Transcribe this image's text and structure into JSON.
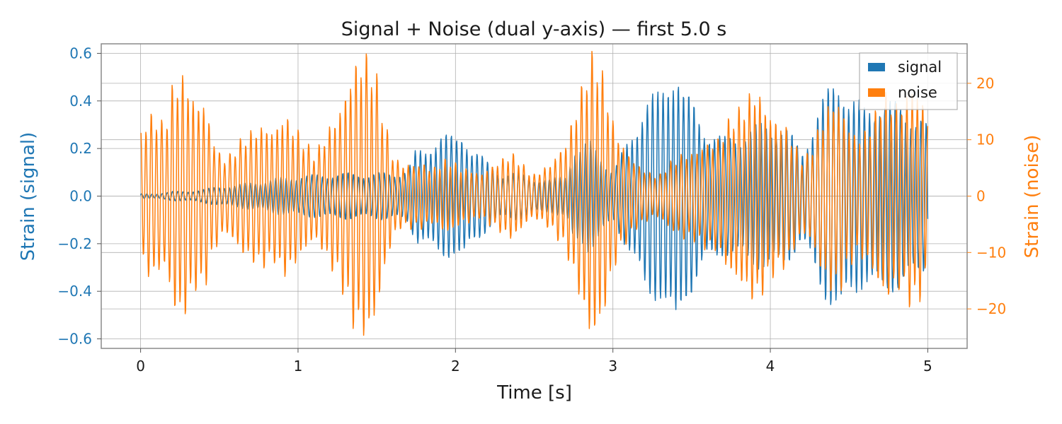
{
  "chart_data": {
    "type": "line",
    "title": "Signal + Noise (dual y-axis) — first 5.0 s",
    "xlabel": "Time [s]",
    "ylabel_left": "Strain (signal)",
    "ylabel_right": "Strain (noise)",
    "xlim": [
      -0.25,
      5.25
    ],
    "ylim_left": [
      -0.64,
      0.64
    ],
    "ylim_right": [
      -27,
      27
    ],
    "x_ticks": [
      0,
      1,
      2,
      3,
      4,
      5
    ],
    "x_tick_labels": [
      "0",
      "1",
      "2",
      "3",
      "4",
      "5"
    ],
    "y_left_ticks": [
      -0.6,
      -0.4,
      -0.2,
      0.0,
      0.2,
      0.4,
      0.6
    ],
    "y_left_tick_labels": [
      "−0.6",
      "−0.4",
      "−0.2",
      "0.0",
      "0.2",
      "0.4",
      "0.6"
    ],
    "y_right_ticks": [
      -20,
      -10,
      0,
      10,
      20
    ],
    "y_right_tick_labels": [
      "−20",
      "−10",
      "0",
      "10",
      "20"
    ],
    "grid": true,
    "legend_position": "top-right",
    "series": [
      {
        "name": "signal",
        "axis": "left",
        "color": "#1f77b4",
        "x": [
          0.0,
          0.1,
          0.2,
          0.3,
          0.4,
          0.5,
          0.6,
          0.7,
          0.8,
          0.9,
          1.0,
          1.1,
          1.2,
          1.3,
          1.4,
          1.5,
          1.6,
          1.7,
          1.75,
          1.8,
          1.85,
          1.9,
          2.0,
          2.05,
          2.1,
          2.2,
          2.3,
          2.4,
          2.5,
          2.6,
          2.7,
          2.75,
          2.8,
          2.85,
          2.9,
          3.0,
          3.1,
          3.2,
          3.3,
          3.35,
          3.4,
          3.45,
          3.5,
          3.6,
          3.7,
          3.8,
          3.9,
          4.0,
          4.1,
          4.2,
          4.3,
          4.4,
          4.45,
          4.5,
          4.6,
          4.7,
          4.8,
          4.9,
          4.95,
          5.0
        ],
        "amplitude": [
          0.01,
          0.01,
          0.02,
          0.02,
          0.03,
          0.04,
          0.05,
          0.06,
          0.07,
          0.08,
          0.09,
          0.09,
          0.1,
          0.1,
          0.1,
          0.1,
          0.1,
          0.12,
          0.2,
          0.2,
          0.25,
          0.28,
          0.25,
          0.3,
          0.22,
          0.15,
          0.1,
          0.1,
          0.08,
          0.07,
          0.1,
          0.22,
          0.2,
          0.25,
          0.22,
          0.1,
          0.25,
          0.42,
          0.45,
          0.55,
          0.62,
          0.45,
          0.42,
          0.3,
          0.25,
          0.28,
          0.3,
          0.33,
          0.3,
          0.2,
          0.38,
          0.5,
          0.55,
          0.45,
          0.38,
          0.45,
          0.4,
          0.38,
          0.37,
          0.3
        ]
      },
      {
        "name": "noise",
        "axis": "right",
        "color": "#ff7f0e",
        "x": [
          0.0,
          0.05,
          0.1,
          0.15,
          0.2,
          0.25,
          0.3,
          0.35,
          0.4,
          0.45,
          0.5,
          0.55,
          0.6,
          0.65,
          0.7,
          0.75,
          0.8,
          0.85,
          0.9,
          0.95,
          1.0,
          1.05,
          1.1,
          1.15,
          1.2,
          1.25,
          1.3,
          1.35,
          1.4,
          1.45,
          1.5,
          1.55,
          1.6,
          1.65,
          1.7,
          1.75,
          1.8,
          1.85,
          1.9,
          1.95,
          2.0,
          2.05,
          2.1,
          2.15,
          2.2,
          2.25,
          2.3,
          2.35,
          2.4,
          2.45,
          2.5,
          2.55,
          2.6,
          2.65,
          2.7,
          2.75,
          2.8,
          2.85,
          2.9,
          2.95,
          3.0,
          3.05,
          3.1,
          3.15,
          3.2,
          3.25,
          3.3,
          3.35,
          3.4,
          3.45,
          3.5,
          3.55,
          3.6,
          3.65,
          3.7,
          3.75,
          3.8,
          3.85,
          3.9,
          3.95,
          4.0,
          4.05,
          4.1,
          4.15,
          4.2,
          4.25,
          4.3,
          4.35,
          4.4,
          4.45,
          4.5,
          4.55,
          4.6,
          4.65,
          4.7,
          4.75,
          4.8,
          4.85,
          4.9,
          4.95,
          5.0
        ],
        "amplitude": [
          12,
          15,
          15,
          13,
          20,
          23,
          21,
          17,
          18,
          12,
          8,
          7,
          9,
          11,
          12,
          13,
          13,
          12,
          15,
          14,
          12,
          10,
          8,
          10,
          13,
          15,
          19,
          24,
          26,
          26,
          22,
          14,
          8,
          6,
          6,
          6,
          6,
          5,
          6,
          7,
          6,
          5,
          5,
          4,
          5,
          6,
          7,
          8,
          7,
          5,
          4,
          5,
          6,
          8,
          10,
          15,
          20,
          26,
          26,
          21,
          14,
          10,
          8,
          6,
          5,
          4,
          4,
          6,
          7,
          8,
          8,
          9,
          10,
          10,
          12,
          15,
          16,
          18,
          20,
          18,
          15,
          14,
          13,
          10,
          7,
          8,
          12,
          16,
          18,
          17,
          13,
          11,
          12,
          14,
          18,
          19,
          17,
          18,
          21,
          19,
          15
        ]
      }
    ]
  }
}
